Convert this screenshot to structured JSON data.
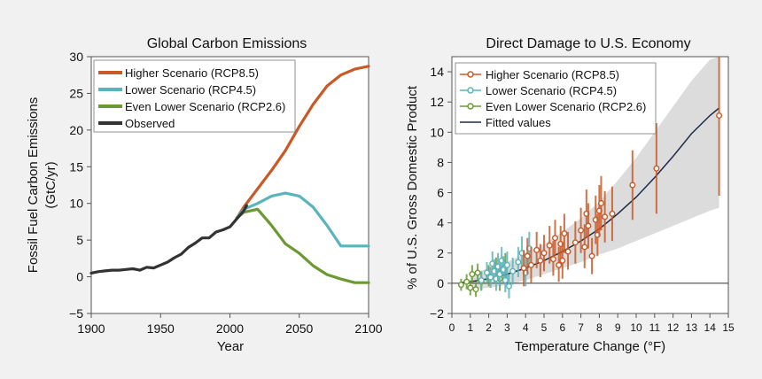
{
  "chart_data": [
    {
      "type": "line",
      "title": "Global Carbon Emissions",
      "xlabel": "Year",
      "ylabel_line1": "Fossil Fuel Carbon Emissions",
      "ylabel_line2": "(GtC/yr)",
      "xlim": [
        1900,
        2100
      ],
      "ylim": [
        -5,
        30
      ],
      "xticks": [
        1900,
        1950,
        2000,
        2050,
        2100
      ],
      "xtick_labels": [
        "1900",
        "1950",
        "2000",
        "2050",
        "2100"
      ],
      "yticks": [
        -5,
        0,
        5,
        10,
        15,
        20,
        25,
        30
      ],
      "ytick_labels": [
        "−5",
        "0",
        "5",
        "10",
        "15",
        "20",
        "25",
        "30"
      ],
      "legend_position": "top-left",
      "series": [
        {
          "name": "Higher Scenario (RCP8.5)",
          "color": "#c85a28",
          "x": [
            2005,
            2010,
            2020,
            2030,
            2040,
            2050,
            2060,
            2070,
            2080,
            2090,
            2100
          ],
          "y": [
            8.0,
            9.5,
            12.0,
            14.5,
            17.2,
            20.5,
            23.5,
            26.0,
            27.5,
            28.3,
            28.7
          ]
        },
        {
          "name": "Lower Scenario (RCP4.5)",
          "color": "#5ab4bb",
          "x": [
            2005,
            2010,
            2020,
            2030,
            2040,
            2050,
            2060,
            2070,
            2080,
            2090,
            2100
          ],
          "y": [
            8.0,
            9.2,
            10.0,
            11.0,
            11.4,
            11.0,
            9.5,
            7.0,
            4.2,
            4.2,
            4.2
          ]
        },
        {
          "name": "Even Lower Scenario (RCP2.6)",
          "color": "#6b9a32",
          "x": [
            2005,
            2010,
            2020,
            2030,
            2040,
            2050,
            2060,
            2070,
            2080,
            2090,
            2100
          ],
          "y": [
            8.0,
            8.8,
            9.2,
            7.0,
            4.5,
            3.2,
            1.5,
            0.3,
            -0.3,
            -0.8,
            -0.8
          ]
        },
        {
          "name": "Observed",
          "color": "#333333",
          "x": [
            1900,
            1905,
            1910,
            1915,
            1920,
            1925,
            1930,
            1935,
            1940,
            1945,
            1950,
            1955,
            1960,
            1965,
            1970,
            1975,
            1980,
            1985,
            1990,
            1995,
            2000,
            2005,
            2010,
            2012
          ],
          "y": [
            0.5,
            0.7,
            0.8,
            0.9,
            0.9,
            1.0,
            1.1,
            0.9,
            1.3,
            1.2,
            1.6,
            2.0,
            2.6,
            3.1,
            4.0,
            4.6,
            5.3,
            5.3,
            6.1,
            6.4,
            6.8,
            7.9,
            9.0,
            9.7
          ]
        }
      ]
    },
    {
      "type": "scatter",
      "title": "Direct Damage to U.S. Economy",
      "xlabel": "Temperature Change (°F)",
      "ylabel": "% of U.S. Gross Domestic Product",
      "xlim": [
        0,
        15
      ],
      "ylim": [
        -2,
        15
      ],
      "xticks": [
        0,
        1,
        2,
        3,
        4,
        5,
        6,
        7,
        8,
        9,
        10,
        11,
        12,
        13,
        14,
        15
      ],
      "xtick_labels": [
        "0",
        "1",
        "2",
        "3",
        "4",
        "5",
        "6",
        "7",
        "8",
        "9",
        "10",
        "11",
        "12",
        "13",
        "14",
        "15"
      ],
      "yticks": [
        -2,
        0,
        2,
        4,
        6,
        8,
        10,
        12,
        14
      ],
      "ytick_labels": [
        "−2",
        "0",
        "2",
        "4",
        "6",
        "8",
        "10",
        "12",
        "14"
      ],
      "legend_position": "top-left",
      "fitted_values": {
        "name": "Fitted values",
        "color": "#1e2a4a",
        "x": [
          0.5,
          1,
          2,
          3,
          4,
          5,
          6,
          7,
          8,
          9,
          10,
          11,
          12,
          13,
          14,
          14.5
        ],
        "y": [
          0.05,
          0.1,
          0.3,
          0.6,
          1.0,
          1.5,
          2.1,
          2.8,
          3.6,
          4.6,
          5.7,
          7.0,
          8.4,
          9.9,
          11.1,
          11.6
        ]
      },
      "confidence_band": {
        "color": "#dcdcdc",
        "x": [
          1,
          2,
          3,
          4,
          5,
          6,
          7,
          8,
          9,
          10,
          11,
          12,
          13,
          14,
          14.5
        ],
        "lower": [
          -0.4,
          -0.3,
          -0.1,
          0.2,
          0.6,
          1.0,
          1.4,
          1.9,
          2.3,
          2.8,
          3.3,
          3.8,
          4.3,
          4.8,
          5.0
        ],
        "upper": [
          0.6,
          1.0,
          1.4,
          2.0,
          2.6,
          3.4,
          4.3,
          5.4,
          6.8,
          8.3,
          10.0,
          11.7,
          13.4,
          14.8,
          15.0
        ]
      },
      "series": [
        {
          "name": "Higher Scenario (RCP8.5)",
          "color": "#c85a28",
          "points": [
            {
              "x": 3.9,
              "y": 1.0,
              "lo": -0.2,
              "hi": 2.2
            },
            {
              "x": 4.1,
              "y": 1.8,
              "lo": 0.6,
              "hi": 3.0
            },
            {
              "x": 4.3,
              "y": 1.2,
              "lo": 0.0,
              "hi": 2.4
            },
            {
              "x": 4.6,
              "y": 2.2,
              "lo": 1.0,
              "hi": 3.4
            },
            {
              "x": 4.8,
              "y": 1.5,
              "lo": 0.4,
              "hi": 2.6
            },
            {
              "x": 5.0,
              "y": 2.0,
              "lo": 0.8,
              "hi": 3.2
            },
            {
              "x": 5.3,
              "y": 2.5,
              "lo": 1.3,
              "hi": 3.8
            },
            {
              "x": 5.5,
              "y": 1.6,
              "lo": 0.5,
              "hi": 2.8
            },
            {
              "x": 5.6,
              "y": 3.0,
              "lo": 1.8,
              "hi": 4.2
            },
            {
              "x": 5.8,
              "y": 1.2,
              "lo": 0.1,
              "hi": 2.4
            },
            {
              "x": 5.9,
              "y": 2.6,
              "lo": 1.4,
              "hi": 3.8
            },
            {
              "x": 6.0,
              "y": 1.5,
              "lo": 0.3,
              "hi": 2.7
            },
            {
              "x": 6.1,
              "y": 3.3,
              "lo": 2.0,
              "hi": 4.6
            },
            {
              "x": 6.3,
              "y": 2.1,
              "lo": 0.9,
              "hi": 3.4
            },
            {
              "x": 6.7,
              "y": 2.7,
              "lo": 1.3,
              "hi": 4.1
            },
            {
              "x": 7.0,
              "y": 3.5,
              "lo": 2.0,
              "hi": 5.0
            },
            {
              "x": 7.2,
              "y": 2.4,
              "lo": 1.0,
              "hi": 3.9
            },
            {
              "x": 7.3,
              "y": 4.6,
              "lo": 3.0,
              "hi": 6.2
            },
            {
              "x": 7.4,
              "y": 3.8,
              "lo": 2.3,
              "hi": 5.3
            },
            {
              "x": 7.6,
              "y": 1.8,
              "lo": 0.6,
              "hi": 3.0
            },
            {
              "x": 7.8,
              "y": 4.2,
              "lo": 2.6,
              "hi": 5.8
            },
            {
              "x": 7.9,
              "y": 3.2,
              "lo": 1.8,
              "hi": 4.6
            },
            {
              "x": 8.0,
              "y": 4.8,
              "lo": 3.1,
              "hi": 6.5
            },
            {
              "x": 8.1,
              "y": 5.3,
              "lo": 3.5,
              "hi": 7.1
            },
            {
              "x": 8.3,
              "y": 4.4,
              "lo": 2.7,
              "hi": 6.1
            },
            {
              "x": 8.7,
              "y": 4.6,
              "lo": 2.8,
              "hi": 6.4
            },
            {
              "x": 9.8,
              "y": 6.5,
              "lo": 4.2,
              "hi": 8.8
            },
            {
              "x": 11.1,
              "y": 7.6,
              "lo": 4.6,
              "hi": 10.6
            },
            {
              "x": 14.5,
              "y": 11.1,
              "lo": 5.8,
              "hi": 15.3
            }
          ]
        },
        {
          "name": "Lower Scenario (RCP4.5)",
          "color": "#5ab4bb",
          "points": [
            {
              "x": 1.6,
              "y": 0.2,
              "lo": -0.4,
              "hi": 0.8
            },
            {
              "x": 1.9,
              "y": 0.7,
              "lo": 0.0,
              "hi": 1.4
            },
            {
              "x": 2.1,
              "y": 0.4,
              "lo": -0.3,
              "hi": 1.1
            },
            {
              "x": 2.2,
              "y": 1.3,
              "lo": 0.5,
              "hi": 2.1
            },
            {
              "x": 2.3,
              "y": 0.8,
              "lo": 0.0,
              "hi": 1.6
            },
            {
              "x": 2.4,
              "y": 0.3,
              "lo": -0.5,
              "hi": 1.1
            },
            {
              "x": 2.5,
              "y": 1.1,
              "lo": 0.2,
              "hi": 2.0
            },
            {
              "x": 2.6,
              "y": 0.6,
              "lo": -0.2,
              "hi": 1.4
            },
            {
              "x": 2.7,
              "y": 1.5,
              "lo": 0.6,
              "hi": 2.4
            },
            {
              "x": 2.8,
              "y": 0.9,
              "lo": 0.0,
              "hi": 1.8
            },
            {
              "x": 2.9,
              "y": 0.2,
              "lo": -0.6,
              "hi": 1.0
            },
            {
              "x": 3.0,
              "y": 1.2,
              "lo": 0.3,
              "hi": 2.1
            },
            {
              "x": 3.1,
              "y": -0.2,
              "lo": -1.0,
              "hi": 0.6
            },
            {
              "x": 3.3,
              "y": 0.8,
              "lo": -0.1,
              "hi": 1.7
            },
            {
              "x": 3.6,
              "y": 1.4,
              "lo": 0.4,
              "hi": 2.4
            },
            {
              "x": 3.8,
              "y": 2.0,
              "lo": 1.0,
              "hi": 3.1
            },
            {
              "x": 4.0,
              "y": 0.7,
              "lo": -0.2,
              "hi": 1.6
            },
            {
              "x": 4.2,
              "y": 2.3,
              "lo": 1.2,
              "hi": 3.4
            }
          ]
        },
        {
          "name": "Even Lower Scenario (RCP2.6)",
          "color": "#6b9a32",
          "points": [
            {
              "x": 0.5,
              "y": -0.1,
              "lo": -0.5,
              "hi": 0.3
            },
            {
              "x": 0.8,
              "y": 0.1,
              "lo": -0.4,
              "hi": 0.6
            },
            {
              "x": 1.0,
              "y": -0.3,
              "lo": -0.8,
              "hi": 0.2
            },
            {
              "x": 1.1,
              "y": 0.6,
              "lo": 0.0,
              "hi": 1.2
            },
            {
              "x": 1.3,
              "y": -0.4,
              "lo": -0.9,
              "hi": 0.1
            },
            {
              "x": 1.4,
              "y": 0.7,
              "lo": 0.1,
              "hi": 1.3
            },
            {
              "x": 1.6,
              "y": 0.1,
              "lo": -0.5,
              "hi": 0.7
            },
            {
              "x": 2.0,
              "y": 0.5,
              "lo": -0.2,
              "hi": 1.2
            },
            {
              "x": 2.4,
              "y": 0.9,
              "lo": 0.1,
              "hi": 1.7
            },
            {
              "x": 2.6,
              "y": 0.3,
              "lo": -0.5,
              "hi": 1.1
            },
            {
              "x": 2.9,
              "y": 1.1,
              "lo": 0.2,
              "hi": 2.0
            }
          ]
        }
      ],
      "legend_fitted_label": "Fitted values"
    }
  ]
}
